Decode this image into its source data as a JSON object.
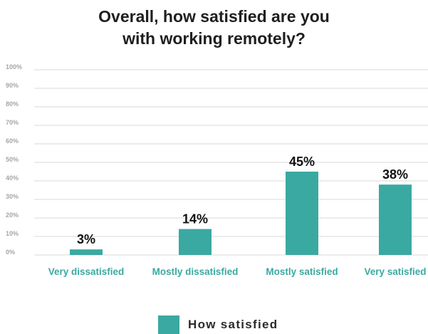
{
  "chart_data": {
    "type": "bar",
    "title_lines": [
      "Overall, how satisfied are you",
      "with working remotely?"
    ],
    "categories": [
      "Very dissatisfied",
      "Mostly dissatisfied",
      "Mostly satisfied",
      "Very satisfied"
    ],
    "series": [
      {
        "name": "How satisfied",
        "values": [
          3,
          14,
          45,
          38
        ],
        "color": "#3aa9a1"
      }
    ],
    "data_labels": [
      "3%",
      "14%",
      "45%",
      "38%"
    ],
    "yticks": [
      "0%",
      "10%",
      "20%",
      "30%",
      "40%",
      "50%",
      "60%",
      "70%",
      "80%",
      "90%",
      "100%"
    ],
    "ylim": [
      0,
      100
    ],
    "grid": true,
    "legend_position": "bottom-center",
    "colors": {
      "bar": "#3aa9a1",
      "category_text": "#3aa9a1",
      "grid": "#d9d9d9",
      "tick_text": "#a6a6a6"
    }
  }
}
